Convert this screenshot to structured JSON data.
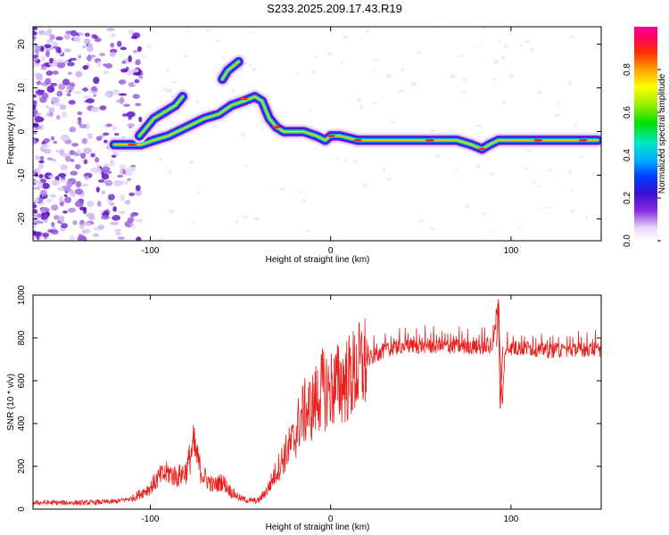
{
  "title": "S233.2025.209.17.43.R19",
  "chart_data": [
    {
      "type": "heatmap",
      "xlabel": "Height of straight line (km)",
      "ylabel": "Frequency (Hz)",
      "xlim": [
        -165,
        150
      ],
      "ylim": [
        -25,
        24
      ],
      "x_ticks": [
        -100,
        0,
        100
      ],
      "y_ticks": [
        -20,
        -10,
        0,
        10,
        20
      ],
      "colorbar": {
        "label": "Normalized spectral amplitude",
        "range": [
          0,
          1
        ],
        "ticks": [
          0.0,
          0.2,
          0.4,
          0.6,
          0.8
        ]
      },
      "ridge_main": {
        "x": [
          -120,
          -112,
          -105,
          -98,
          -90,
          -80,
          -70,
          -62,
          -55,
          -48,
          -42,
          -38,
          -34,
          -30,
          -26,
          -22,
          -15,
          -8,
          -3,
          0,
          5,
          15,
          30,
          50,
          70,
          78,
          84,
          88,
          93,
          100,
          115,
          130,
          148
        ],
        "y": [
          -3,
          -3,
          -3,
          -2,
          -1,
          1,
          3,
          4,
          6,
          7,
          8,
          7,
          3,
          1,
          0,
          0,
          0,
          -1,
          -2,
          -1,
          -1,
          -2,
          -2,
          -2,
          -2,
          -3,
          -4,
          -3,
          -2,
          -2,
          -2,
          -2,
          -2
        ]
      },
      "ridge_upper": {
        "x": [
          -106,
          -102,
          -98,
          -94,
          -90,
          -86,
          -82
        ],
        "y": [
          -1,
          1,
          3,
          4,
          5,
          6,
          8
        ]
      },
      "ridge_isolated": {
        "x": [
          -60,
          -57,
          -54,
          -51
        ],
        "y": [
          12,
          14,
          15,
          16
        ]
      }
    },
    {
      "type": "line",
      "xlabel": "Height of straight line (km)",
      "ylabel": "SNR (10 * v/v)",
      "xlim": [
        -165,
        150
      ],
      "ylim": [
        0,
        1000
      ],
      "x_ticks": [
        -100,
        0,
        100
      ],
      "y_ticks": [
        0,
        200,
        400,
        600,
        800,
        1000
      ],
      "color": "#e8201e",
      "series": [
        {
          "x": [
            -165,
            -150,
            -135,
            -120,
            -110,
            -100,
            -95,
            -90,
            -85,
            -80,
            -76,
            -74,
            -72,
            -70,
            -65,
            -60,
            -55,
            -50,
            -45,
            -40,
            -35,
            -30,
            -25,
            -20,
            -17,
            -15,
            -10,
            -5,
            0,
            5,
            10,
            15,
            20,
            25,
            30,
            35,
            40,
            50,
            60,
            70,
            80,
            90,
            93,
            95,
            97,
            100,
            110,
            120,
            130,
            140,
            150
          ],
          "y": [
            30,
            30,
            30,
            35,
            50,
            100,
            150,
            170,
            150,
            180,
            300,
            240,
            180,
            150,
            110,
            130,
            80,
            50,
            40,
            40,
            90,
            180,
            260,
            330,
            420,
            450,
            480,
            560,
            560,
            590,
            610,
            650,
            690,
            720,
            740,
            750,
            760,
            760,
            760,
            760,
            755,
            760,
            980,
            470,
            750,
            750,
            750,
            740,
            740,
            745,
            745
          ]
        }
      ]
    }
  ]
}
